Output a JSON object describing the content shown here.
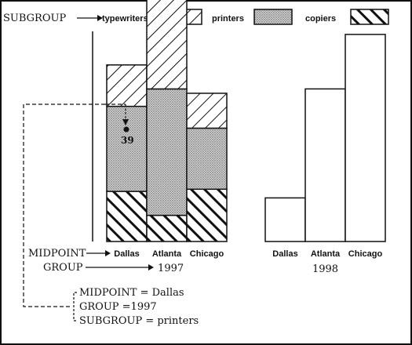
{
  "legend": {
    "subgroup_label": "SUBGROUP",
    "items": [
      {
        "key": "typewriters",
        "label": "typewriters",
        "pattern": "diag-thin"
      },
      {
        "key": "printers",
        "label": "printers",
        "pattern": "dots"
      },
      {
        "key": "copiers",
        "label": "copiers",
        "pattern": "diag-thick"
      }
    ]
  },
  "axis_labels": {
    "midpoint": "MIDPOINT",
    "group": "GROUP"
  },
  "callout": {
    "value_label": "39",
    "lines": [
      "MIDPOINT = Dallas",
      "GROUP =1997",
      "SUBGROUP = printers"
    ]
  },
  "chart_data": {
    "type": "bar",
    "groups": [
      {
        "name": "1997",
        "stacked": true,
        "categories": [
          "Dallas",
          "Atlanta",
          "Chicago"
        ],
        "series": [
          {
            "name": "copiers",
            "values": [
              23,
              12,
              24
            ]
          },
          {
            "name": "printers",
            "values": [
              39,
              58,
              28
            ]
          },
          {
            "name": "typewriters",
            "values": [
              19,
              50,
              16
            ]
          }
        ]
      },
      {
        "name": "1998",
        "stacked": false,
        "categories": [
          "Dallas",
          "Atlanta",
          "Chicago"
        ],
        "values": [
          20,
          70,
          95
        ]
      }
    ]
  }
}
